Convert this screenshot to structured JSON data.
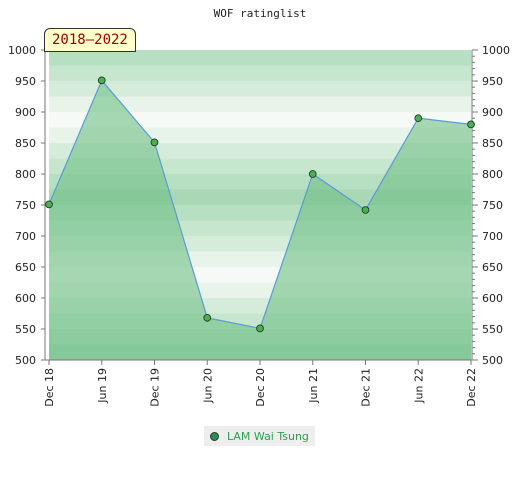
{
  "chart_data": {
    "type": "area",
    "title": "WOF ratinglist",
    "badge": "2018–2022",
    "categories": [
      "Dec 18",
      "Jun 19",
      "Dec 19",
      "Jun 20",
      "Dec 20",
      "Jun 21",
      "Dec 21",
      "Jun 22",
      "Dec 22"
    ],
    "series": [
      {
        "name": "LAM Wai Tsung",
        "values": [
          751,
          951,
          851,
          568,
          551,
          800,
          742,
          890,
          880
        ]
      }
    ],
    "ylim": [
      500,
      1000
    ],
    "yticks": [
      500,
      550,
      600,
      650,
      700,
      750,
      800,
      850,
      900,
      950,
      1000
    ],
    "legend_position": "bottom",
    "grid": true,
    "colors": {
      "line": "#5b9bd5",
      "fill": "#6fbf86",
      "marker": "#4caf50",
      "legend_text": "#2e9e4f"
    }
  }
}
